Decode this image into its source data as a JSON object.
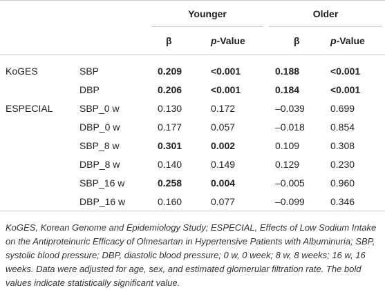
{
  "header": {
    "groups": [
      "Younger",
      "Older"
    ],
    "columns": [
      "β",
      "p-Value",
      "β",
      "p-Value"
    ]
  },
  "table": {
    "rows": [
      [
        "KoGES",
        "SBP",
        "0.209",
        "<0.001",
        "0.188",
        "<0.001"
      ],
      [
        null,
        "DBP",
        "0.206",
        "<0.001",
        "0.184",
        "<0.001"
      ],
      [
        "ESPECIAL",
        "SBP_0 w",
        "0.130",
        "0.172",
        "–0.039",
        "0.699"
      ],
      [
        null,
        "DBP_0 w",
        "0.177",
        "0.057",
        "–0.018",
        "0.854"
      ],
      [
        null,
        "SBP_8 w",
        "0.301",
        "0.002",
        "0.109",
        "0.308"
      ],
      [
        null,
        "DBP_8 w",
        "0.140",
        "0.149",
        "0.129",
        "0.230"
      ],
      [
        null,
        "SBP_16 w",
        "0.258",
        "0.004",
        "–0.005",
        "0.960"
      ],
      [
        null,
        "DBP_16 w",
        "0.160",
        "0.077",
        "–0.099",
        "0.346"
      ]
    ]
  },
  "footnote": "KoGES, Korean Genome and Epidemiology Study; ESPECIAL, Effects of Low Sodium Intake on the Antiproteinuric Efficacy of Olmesartan in Hypertensive Patients with Albuminuria; SBP, systolic blood pressure; DBP, diastolic blood pressure; 0 w, 0 week; 8 w, 8 weeks; 16 w, 16 weeks. Data were adjusted for age, sex, and estimated glomerular filtration rate. The bold values indicate statistically significant value."
}
